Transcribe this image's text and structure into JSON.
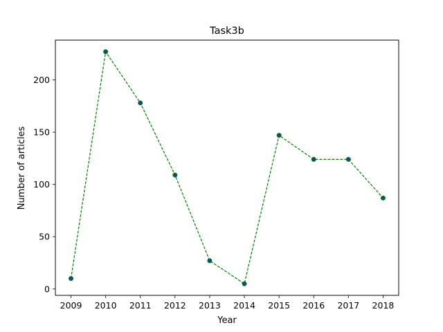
{
  "chart_data": {
    "type": "line",
    "title": "Task3b",
    "xlabel": "Year",
    "ylabel": "Number of articles",
    "x": [
      2009,
      2010,
      2011,
      2012,
      2013,
      2014,
      2015,
      2016,
      2017,
      2018
    ],
    "series": [
      {
        "values": [
          10,
          227,
          178,
          109,
          27,
          5,
          147,
          124,
          124,
          87
        ]
      }
    ],
    "xticks": [
      "2009",
      "2010",
      "2011",
      "2012",
      "2013",
      "2014",
      "2015",
      "2016",
      "2017",
      "2018"
    ],
    "yticks": [
      0,
      50,
      100,
      150,
      200
    ],
    "xlim": [
      2008.55,
      2018.45
    ],
    "ylim": [
      -6.1,
      238.1
    ],
    "grid": false,
    "colors": {
      "line": "#008000",
      "marker_fill": "#1f3f8f",
      "marker_edge": "#008000"
    },
    "line_style": "dashed",
    "marker": "circle"
  }
}
